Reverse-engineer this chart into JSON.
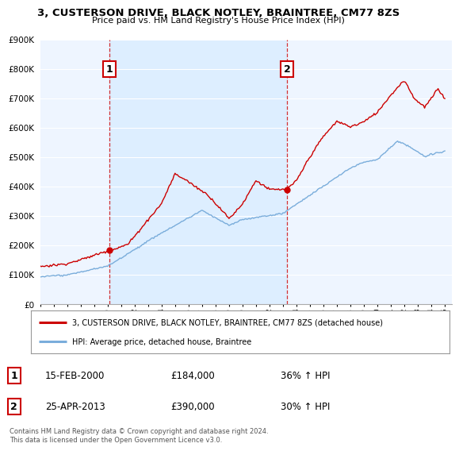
{
  "title": "3, CUSTERSON DRIVE, BLACK NOTLEY, BRAINTREE, CM77 8ZS",
  "subtitle": "Price paid vs. HM Land Registry's House Price Index (HPI)",
  "legend_label_red": "3, CUSTERSON DRIVE, BLACK NOTLEY, BRAINTREE, CM77 8ZS (detached house)",
  "legend_label_blue": "HPI: Average price, detached house, Braintree",
  "sale1_date": "15-FEB-2000",
  "sale1_price": "£184,000",
  "sale1_hpi": "36% ↑ HPI",
  "sale1_year": 2000.12,
  "sale1_value": 184000,
  "sale2_date": "25-APR-2013",
  "sale2_price": "£390,000",
  "sale2_hpi": "30% ↑ HPI",
  "sale2_year": 2013.31,
  "sale2_value": 390000,
  "copyright": "Contains HM Land Registry data © Crown copyright and database right 2024.\nThis data is licensed under the Open Government Licence v3.0.",
  "ylim": [
    0,
    900000
  ],
  "xlim_start": 1995,
  "xlim_end": 2025.5,
  "red_color": "#cc0000",
  "blue_color": "#7aaddb",
  "shade_color": "#ddeeff",
  "background_color": "#ffffff",
  "grid_color": "#cccccc"
}
